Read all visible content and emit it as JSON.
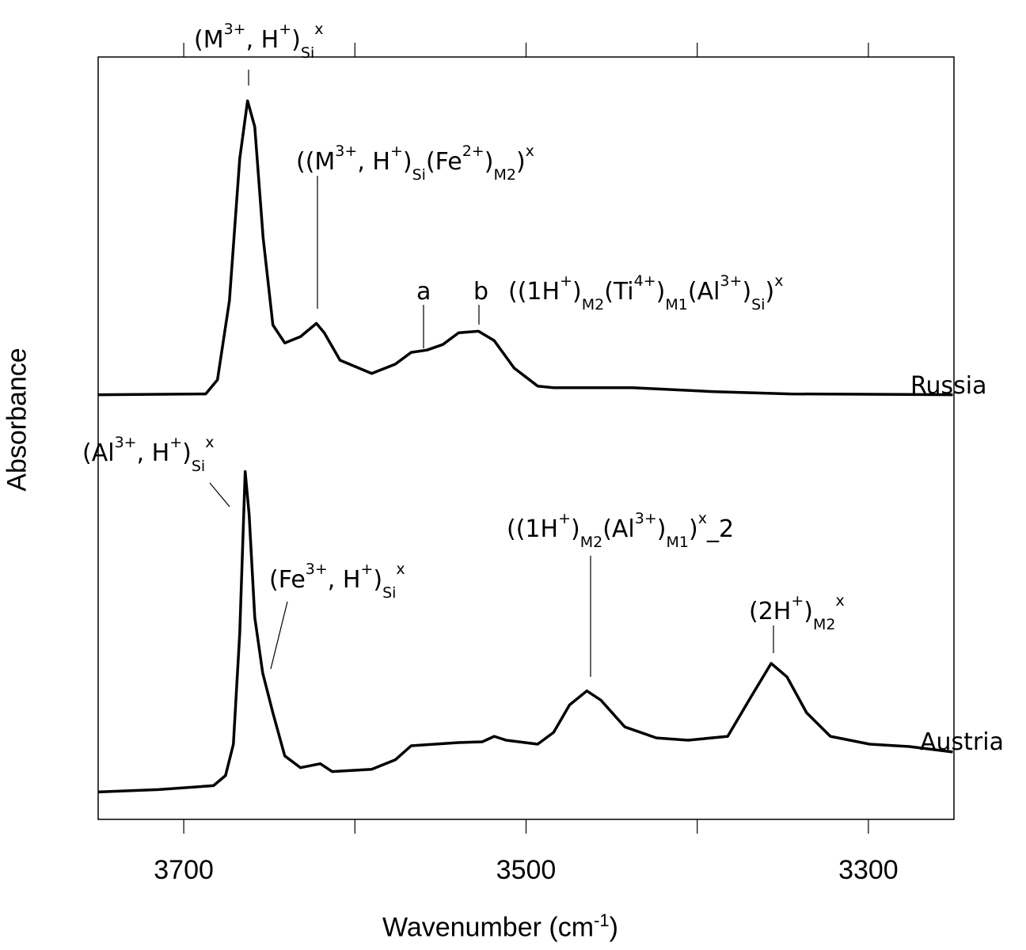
{
  "chart_data": {
    "type": "line",
    "title": "",
    "xlabel": "Wavenumber (cm-1)",
    "xlabel_parts": [
      {
        "t": "Wavenumber (cm",
        "p": "base"
      },
      {
        "t": "-1",
        "p": "sup"
      },
      {
        "t": ")",
        "p": "base"
      }
    ],
    "ylabel": "Absorbance",
    "xlim": [
      3750,
      3250
    ],
    "x_reversed": true,
    "ylim": [
      0,
      0.973
    ],
    "y_ticks_shown": false,
    "grid": false,
    "x_ticks": [
      3700,
      3600,
      3500,
      3400,
      3300
    ],
    "x_tick_labels": [
      "3700",
      "",
      "3500",
      "",
      "3300"
    ],
    "line_color": "#000000",
    "series": [
      {
        "name": "Russia",
        "x": [
          3750,
          3687.2,
          3680.3,
          3673.3,
          3667.3,
          3662.7,
          3658.5,
          3653.6,
          3647.9,
          3641,
          3631.8,
          3622.5,
          3617.9,
          3608.7,
          3590.2,
          3576.4,
          3567.1,
          3557.9,
          3548.6,
          3539.4,
          3527.8,
          3518.6,
          3507,
          3493.2,
          3483.9,
          3437.8,
          3391.6,
          3345.4,
          3250.7
        ],
        "y": [
          0.542,
          0.543,
          0.561,
          0.662,
          0.843,
          0.917,
          0.884,
          0.742,
          0.631,
          0.608,
          0.616,
          0.633,
          0.621,
          0.586,
          0.569,
          0.581,
          0.596,
          0.599,
          0.606,
          0.621,
          0.623,
          0.611,
          0.576,
          0.553,
          0.551,
          0.551,
          0.546,
          0.543,
          0.542
        ]
      },
      {
        "name": "Austria",
        "x": [
          3750,
          3714.9,
          3682.6,
          3675.6,
          3671,
          3667.3,
          3664.1,
          3661.8,
          3658.5,
          3653.9,
          3647.9,
          3641,
          3631.8,
          3620.2,
          3613.3,
          3590.2,
          3576.4,
          3567.1,
          3539.4,
          3525.6,
          3518.6,
          3511.7,
          3493.2,
          3483.9,
          3474.6,
          3464.5,
          3456.2,
          3442.3,
          3423.8,
          3405.3,
          3382.2,
          3368.4,
          3356.8,
          3347.6,
          3336.1,
          3322.2,
          3299.2,
          3276.1,
          3250.7
        ],
        "y": [
          0.035,
          0.038,
          0.043,
          0.056,
          0.096,
          0.237,
          0.444,
          0.389,
          0.258,
          0.187,
          0.136,
          0.081,
          0.066,
          0.071,
          0.061,
          0.064,
          0.076,
          0.094,
          0.098,
          0.099,
          0.106,
          0.101,
          0.096,
          0.111,
          0.146,
          0.164,
          0.152,
          0.118,
          0.104,
          0.101,
          0.106,
          0.157,
          0.199,
          0.182,
          0.136,
          0.106,
          0.096,
          0.093,
          0.086
        ]
      }
    ],
    "annotations": [
      {
        "parts": [
          {
            "t": "(M",
            "p": "base"
          },
          {
            "t": "3+",
            "p": "sup"
          },
          {
            "t": ", H",
            "p": "base"
          },
          {
            "t": "+",
            "p": "sup"
          },
          {
            "t": ")",
            "p": "base"
          },
          {
            "t": "Si",
            "p": "sub"
          },
          {
            "t": "x",
            "p": "sup"
          }
        ]
      },
      {
        "parts": [
          {
            "t": "((M",
            "p": "base"
          },
          {
            "t": "3+",
            "p": "sup"
          },
          {
            "t": ", H",
            "p": "base"
          },
          {
            "t": "+",
            "p": "sup"
          },
          {
            "t": ")",
            "p": "base"
          },
          {
            "t": "Si",
            "p": "sub"
          },
          {
            "t": "(Fe",
            "p": "base"
          },
          {
            "t": "2+",
            "p": "sup"
          },
          {
            "t": ")",
            "p": "base"
          },
          {
            "t": "M2",
            "p": "sub"
          },
          {
            "t": ")",
            "p": "base"
          },
          {
            "t": "x",
            "p": "sup"
          }
        ]
      },
      {
        "parts": [
          {
            "t": "a",
            "p": "base"
          }
        ]
      },
      {
        "parts": [
          {
            "t": "b",
            "p": "base"
          }
        ]
      },
      {
        "parts": [
          {
            "t": "((1H",
            "p": "base"
          },
          {
            "t": "+",
            "p": "sup"
          },
          {
            "t": ")",
            "p": "base"
          },
          {
            "t": "M2",
            "p": "sub"
          },
          {
            "t": "(Ti",
            "p": "base"
          },
          {
            "t": "4+",
            "p": "sup"
          },
          {
            "t": ")",
            "p": "base"
          },
          {
            "t": "M1",
            "p": "sub"
          },
          {
            "t": "(Al",
            "p": "base"
          },
          {
            "t": "3+",
            "p": "sup"
          },
          {
            "t": ")",
            "p": "base"
          },
          {
            "t": "Si",
            "p": "sub"
          },
          {
            "t": ")",
            "p": "base"
          },
          {
            "t": "x",
            "p": "sup"
          }
        ]
      },
      {
        "parts": [
          {
            "t": "Russia",
            "p": "base"
          }
        ]
      },
      {
        "parts": [
          {
            "t": "(Al",
            "p": "base"
          },
          {
            "t": "3+",
            "p": "sup"
          },
          {
            "t": ", H",
            "p": "base"
          },
          {
            "t": "+",
            "p": "sup"
          },
          {
            "t": ")",
            "p": "base"
          },
          {
            "t": "Si",
            "p": "sub"
          },
          {
            "t": "x",
            "p": "sup"
          }
        ]
      },
      {
        "parts": [
          {
            "t": "(Fe",
            "p": "base"
          },
          {
            "t": "3+",
            "p": "sup"
          },
          {
            "t": ", H",
            "p": "base"
          },
          {
            "t": "+",
            "p": "sup"
          },
          {
            "t": ")",
            "p": "base"
          },
          {
            "t": "Si",
            "p": "sub"
          },
          {
            "t": "x",
            "p": "sup"
          }
        ]
      },
      {
        "parts": [
          {
            "t": "((1H",
            "p": "base"
          },
          {
            "t": "+",
            "p": "sup"
          },
          {
            "t": ")",
            "p": "base"
          },
          {
            "t": "M2",
            "p": "sub"
          },
          {
            "t": "(Al",
            "p": "base"
          },
          {
            "t": "3+",
            "p": "sup"
          },
          {
            "t": ")",
            "p": "base"
          },
          {
            "t": "M1",
            "p": "sub"
          },
          {
            "t": ")",
            "p": "base"
          },
          {
            "t": "x",
            "p": "sup"
          },
          {
            "t": "_2",
            "p": "base"
          }
        ]
      },
      {
        "parts": [
          {
            "t": "(2H",
            "p": "base"
          },
          {
            "t": "+",
            "p": "sup"
          },
          {
            "t": ")",
            "p": "base"
          },
          {
            "t": "M2",
            "p": "sub"
          },
          {
            "t": "x",
            "p": "sup"
          }
        ]
      },
      {
        "parts": [
          {
            "t": "Austria",
            "p": "base"
          }
        ]
      }
    ]
  }
}
